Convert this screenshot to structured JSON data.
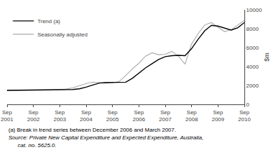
{
  "chart_data": {
    "type": "line",
    "ylabel": "$m",
    "ylim": [
      0,
      10000
    ],
    "yticks": [
      0,
      2000,
      4000,
      6000,
      8000,
      10000
    ],
    "grid": false,
    "legend": "upper left",
    "categories": [
      "Sep\n2001",
      null,
      null,
      null,
      "Sep\n2002",
      null,
      null,
      null,
      "Sep\n2003",
      null,
      null,
      null,
      "Sep\n2004",
      null,
      null,
      null,
      "Sep\n2005",
      null,
      null,
      null,
      "Sep\n2006",
      null,
      null,
      null,
      "Sep\n2007",
      null,
      null,
      null,
      "Sep\n2008",
      null,
      null,
      null,
      "Sep\n2009",
      null,
      null,
      null,
      "Sep\n2010"
    ],
    "series": [
      {
        "name": "Trend (a)",
        "color": "#000000",
        "values": [
          1480,
          1490,
          1500,
          1510,
          1520,
          1530,
          1530,
          1520,
          1520,
          1540,
          1570,
          1650,
          1820,
          2050,
          2250,
          2320,
          2310,
          2310,
          2340,
          2750,
          3300,
          3850,
          4300,
          4750,
          5050,
          5150,
          5180,
          5150,
          5900,
          6900,
          7800,
          8350,
          8280,
          8080,
          7850,
          8100,
          8650
        ]
      },
      {
        "name": "Seasonally adjusted",
        "color": "#aaaaaa",
        "values": [
          1470,
          1490,
          1490,
          1510,
          1530,
          1520,
          1510,
          1510,
          1540,
          1630,
          1760,
          1980,
          2200,
          2350,
          2290,
          2230,
          2260,
          2420,
          3050,
          3750,
          4350,
          5100,
          5450,
          5250,
          5300,
          5600,
          5100,
          4250,
          6400,
          7500,
          8400,
          8650,
          8150,
          7700,
          7900,
          8380,
          8870
        ]
      }
    ],
    "annotations": [
      "(a) Break in trend series between December 2006 and March 2007.",
      "Source: Private New Capital Expenditure and Expected Expenditure, Australia,",
      "      cat. no. 5625.0."
    ]
  }
}
